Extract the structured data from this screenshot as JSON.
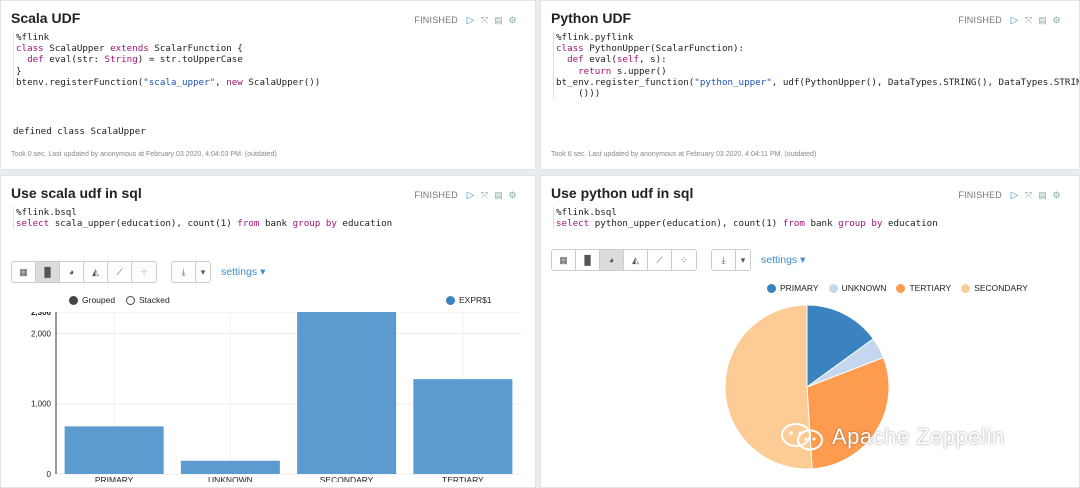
{
  "colors": {
    "bar": "#5b9bd0",
    "primary": "#3a82c0",
    "unknown": "#c4d7ef",
    "tertiary": "#fd9b4f",
    "secondary": "#fdcc96"
  },
  "p1": {
    "title": "Scala UDF",
    "status": "FINISHED",
    "code": [
      "%flink",
      "",
      "",
      "class ScalaUpper extends ScalarFunction {",
      "  def eval(str: String) = str.toUpperCase",
      "}",
      "btenv.registerFunction(\"scala_upper\", new ScalaUpper())"
    ],
    "output": "defined class ScalaUpper",
    "footer": "Took 0 sec. Last updated by anonymous at February 03 2020, 4:04:03 PM. (outdated)"
  },
  "p2": {
    "title": "Python UDF",
    "status": "FINISHED",
    "code": [
      "%flink.pyflink",
      "",
      "",
      "class PythonUpper(ScalarFunction):",
      "  def eval(self, s):",
      "    return s.upper()",
      "",
      "bt_env.register_function(\"python_upper\", udf(PythonUpper(), DataTypes.STRING(), DataTypes.STRING",
      "    ()))"
    ],
    "footer": "Took 6 sec. Last updated by anonymous at February 03 2020, 4:04:11 PM. (outdated)"
  },
  "p3": {
    "title": "Use scala udf in sql",
    "status": "FINISHED",
    "code": [
      "%flink.bsql",
      "",
      "select scala_upper(education), count(1) from bank group by education"
    ],
    "settings": "settings ▾",
    "grouped": "Grouped",
    "stacked": "Stacked",
    "series_label": "EXPR$1"
  },
  "p4": {
    "title": "Use python udf in sql",
    "status": "FINISHED",
    "code": [
      "%flink.bsql",
      "",
      "select python_upper(education), count(1) from bank group by education"
    ],
    "settings": "settings ▾"
  },
  "watermark": "Apache Zeppelin",
  "chart_data": [
    {
      "type": "bar",
      "categories": [
        "PRIMARY",
        "UNKNOWN",
        "SECONDARY",
        "TERTIARY"
      ],
      "series": [
        {
          "name": "EXPR$1",
          "values": [
            678,
            188,
            2306,
            1350
          ]
        }
      ],
      "ylim": [
        0,
        2306
      ],
      "yticks": [
        "0",
        "1,000",
        "2,000",
        "2,306"
      ],
      "grid": true,
      "legend": "top-right"
    },
    {
      "type": "pie",
      "labels": [
        "PRIMARY",
        "UNKNOWN",
        "TERTIARY",
        "SECONDARY"
      ],
      "values": [
        678,
        188,
        1350,
        2306
      ],
      "legend": "top"
    }
  ]
}
